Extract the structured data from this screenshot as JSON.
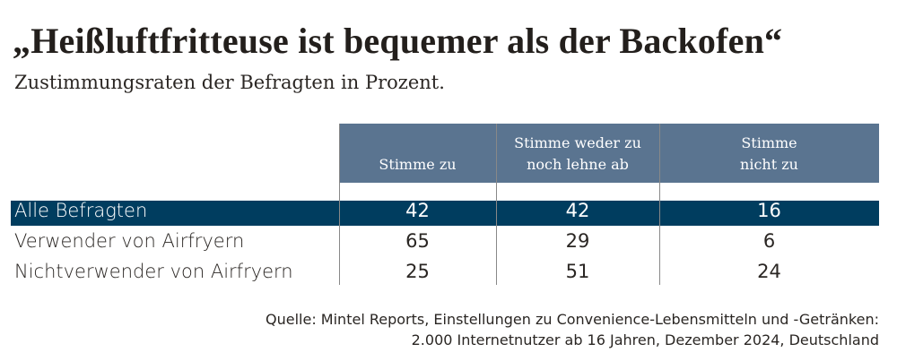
{
  "chart_data": {
    "type": "table",
    "title": "„Heißluftfritteuse ist bequemer als der Backofen“",
    "subtitle": "Zustimmungsraten der Befragten in Prozent.",
    "columns": [
      "Stimme zu",
      "Stimme weder zu noch lehne ab",
      "Stimme nicht zu"
    ],
    "column_lines": [
      [
        "Stimme zu"
      ],
      [
        "Stimme weder zu",
        "noch lehne ab"
      ],
      [
        "Stimme",
        "nicht zu"
      ]
    ],
    "rows": [
      {
        "label": "Alle Befragten",
        "values": [
          "42",
          "42",
          "16"
        ],
        "highlight": true
      },
      {
        "label": "Verwender von Airfryern",
        "values": [
          "65",
          "29",
          "6"
        ],
        "highlight": false
      },
      {
        "label": "Nichtverwender von Airfryern",
        "values": [
          "25",
          "51",
          "24"
        ],
        "highlight": false
      }
    ],
    "source": [
      "Quelle: Mintel Reports, Einstellungen zu Convenience-Lebensmitteln und -Getränken:",
      "2.000 Internetnutzer ab 16 Jahren, Dezember 2024, Deutschland"
    ],
    "colors": {
      "header": "#5a7490",
      "highlight": "#003d5f",
      "text": "#2a2623"
    }
  }
}
